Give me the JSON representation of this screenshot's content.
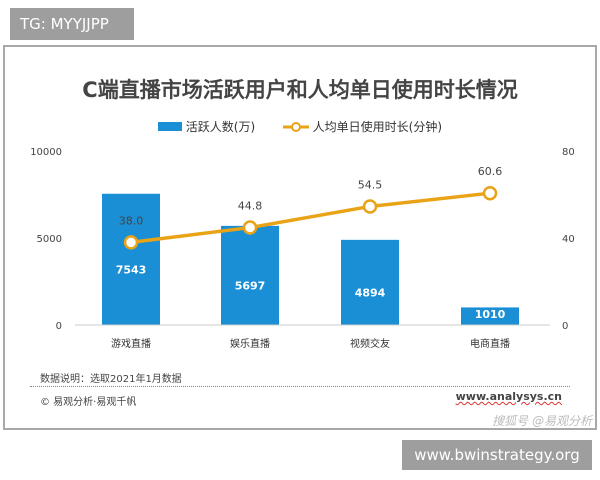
{
  "tag": "TG: MYYJJPP",
  "footer_site": "www.bwinstrategy.org",
  "chart_data": {
    "type": "bar+line",
    "title": "C端直播市场活跃用户和人均单日使用时长情况",
    "categories": [
      "游戏直播",
      "娱乐直播",
      "视频交友",
      "电商直播"
    ],
    "series": [
      {
        "name": "活跃人数(万)",
        "type": "bar",
        "axis": "left",
        "color": "#1a8fd6",
        "values": [
          7543,
          5697,
          4894,
          1010
        ]
      },
      {
        "name": "人均单日使用时长(分钟)",
        "type": "line",
        "axis": "right",
        "color": "#e8a317",
        "values": [
          38.0,
          44.8,
          54.5,
          60.6
        ]
      }
    ],
    "left_axis": {
      "range": [
        0,
        10000
      ],
      "ticks": [
        "0",
        "5000",
        "10000"
      ]
    },
    "right_axis": {
      "range": [
        0,
        80
      ],
      "ticks": [
        "0",
        "40",
        "80"
      ]
    },
    "legend": "top",
    "grid": false,
    "data_labels": {
      "bars": [
        "7543",
        "5697",
        "4894",
        "1010"
      ],
      "line": [
        "38.0",
        "44.8",
        "54.5",
        "60.6"
      ]
    }
  },
  "note": "数据说明：选取2021年1月数据",
  "copyright": "© 易观分析·易观千帆",
  "source_site": "www.analysys.cn",
  "watermark": "搜狐号 @易观分析"
}
